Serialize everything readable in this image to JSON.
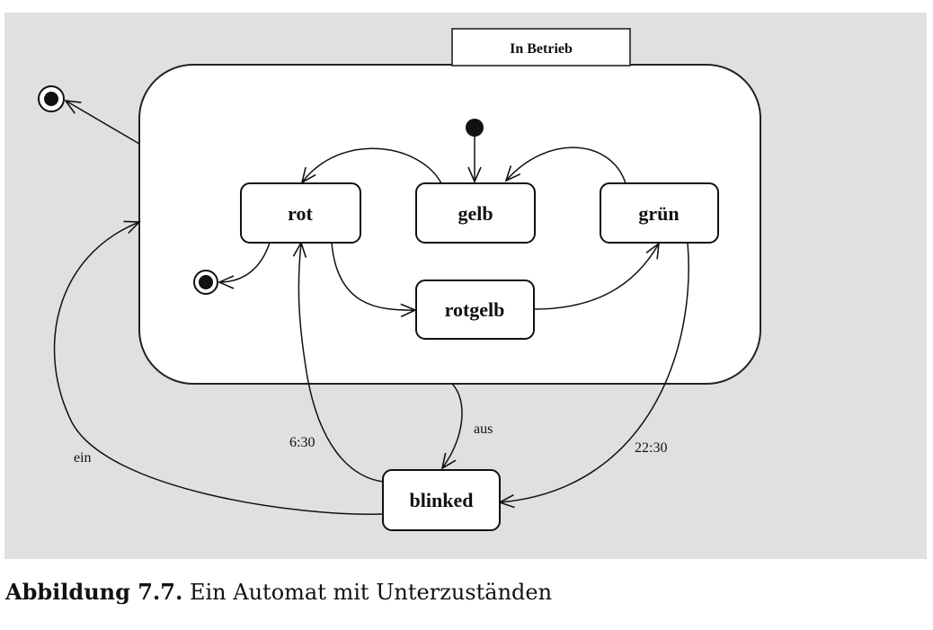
{
  "diagram": {
    "composite_state": "In Betrieb",
    "states": {
      "rot": "rot",
      "gelb": "gelb",
      "gruen": "grün",
      "rotgelb": "rotgelb",
      "blinked": "blinked"
    },
    "transitions": {
      "aus": "aus",
      "ein": "ein",
      "t_630": "6:30",
      "t_2230": "22:30"
    }
  },
  "caption": {
    "label": "Abbildung 7.7.",
    "text": "Ein Automat mit Unterzuständen"
  }
}
